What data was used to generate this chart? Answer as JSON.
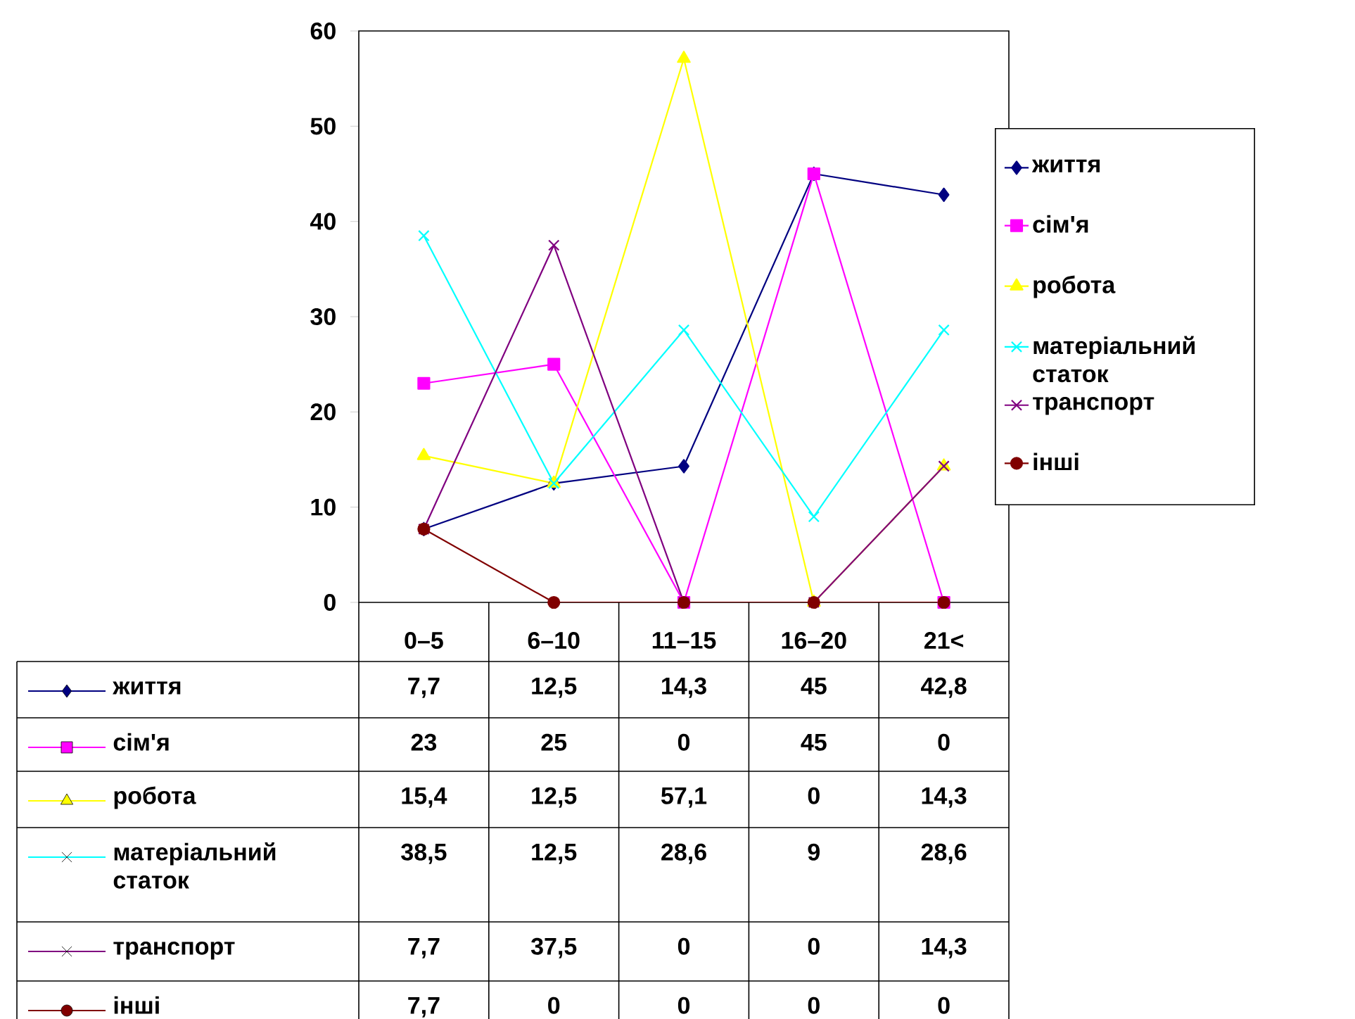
{
  "chart_data": {
    "type": "line",
    "categories": [
      "0–5",
      "6–10",
      "11–15",
      "16–20",
      "21<"
    ],
    "series": [
      {
        "name": "життя",
        "color": "#000080",
        "marker": "diamond",
        "values": [
          7.7,
          12.5,
          14.3,
          45,
          42.8
        ],
        "value_labels": [
          "7,7",
          "12,5",
          "14,3",
          "45",
          "42,8"
        ]
      },
      {
        "name": "сім'я",
        "color": "#ff00ff",
        "marker": "square",
        "values": [
          23,
          25,
          0,
          45,
          0
        ],
        "value_labels": [
          "23",
          "25",
          "0",
          "45",
          "0"
        ]
      },
      {
        "name": "робота",
        "color": "#ffff00",
        "marker": "triangle",
        "values": [
          15.4,
          12.5,
          57.1,
          0,
          14.3
        ],
        "value_labels": [
          "15,4",
          "12,5",
          "57,1",
          "0",
          "14,3"
        ]
      },
      {
        "name": "матеріальний статок",
        "color": "#00ffff",
        "marker": "cross",
        "values": [
          38.5,
          12.5,
          28.6,
          9,
          28.6
        ],
        "value_labels": [
          "38,5",
          "12,5",
          "28,6",
          "9",
          "28,6"
        ]
      },
      {
        "name": "транспорт",
        "color": "#800080",
        "marker": "cross",
        "values": [
          7.7,
          37.5,
          0,
          0,
          14.3
        ],
        "value_labels": [
          "7,7",
          "37,5",
          "0",
          "0",
          "14,3"
        ]
      },
      {
        "name": "інші",
        "color": "#800000",
        "marker": "circle",
        "values": [
          7.7,
          0,
          0,
          0,
          0
        ],
        "value_labels": [
          "7,7",
          "0",
          "0",
          "0",
          "0"
        ]
      }
    ],
    "ylim": [
      0,
      60
    ],
    "yticks": [
      0,
      10,
      20,
      30,
      40,
      50,
      60
    ],
    "grid": false,
    "legend": "right"
  }
}
